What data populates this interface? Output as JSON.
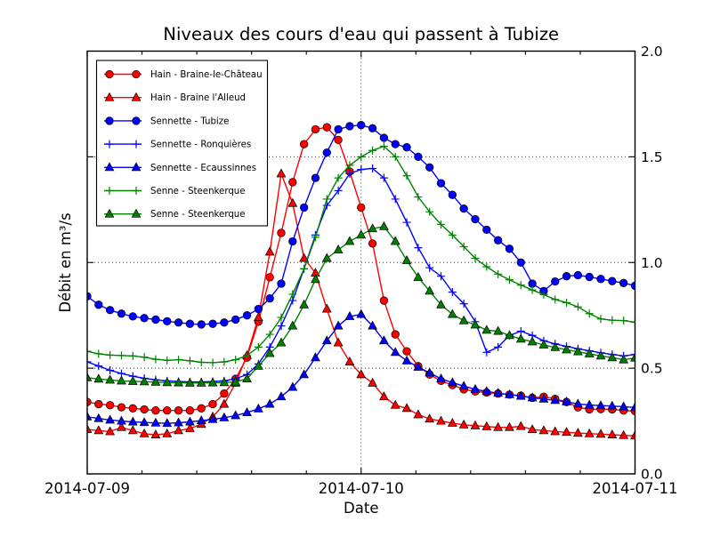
{
  "chart_data": {
    "type": "line",
    "title": "Niveaux des cours d'eau qui passent à Tubize",
    "xlabel": "Date",
    "ylabel": "Débit en m³/s",
    "x_tick_labels": [
      "2014-07-09",
      "2014-07-10",
      "2014-07-11"
    ],
    "y_tick_labels": [
      "0.0",
      "0.5",
      "1.0",
      "1.5",
      "2.0"
    ],
    "y_tick_values": [
      0.0,
      0.5,
      1.0,
      1.5,
      2.0
    ],
    "ylim": [
      0.0,
      2.0
    ],
    "x_range_hours": 48,
    "x_major_tick_hours": [
      0,
      24,
      48
    ],
    "x_minor_tick_hours": [
      4.8,
      9.6,
      14.4,
      19.2,
      28.8,
      33.6,
      38.4,
      43.2
    ],
    "grid": {
      "style": "dotted",
      "y_values": [
        0.5,
        1.0,
        1.5
      ],
      "x_hours": [
        24
      ]
    },
    "legend": {
      "position": "upper-left"
    },
    "axis_color": "#000000",
    "background_color": "#ffffff",
    "series": [
      {
        "name": "Hain - Braine-le-Château",
        "color": "#ff0000",
        "marker": "circle",
        "hours_step": 1,
        "values": [
          0.34,
          0.33,
          0.325,
          0.315,
          0.31,
          0.305,
          0.3,
          0.3,
          0.3,
          0.3,
          0.31,
          0.33,
          0.38,
          0.45,
          0.55,
          0.72,
          0.93,
          1.14,
          1.38,
          1.56,
          1.63,
          1.64,
          1.58,
          1.43,
          1.26,
          1.09,
          0.82,
          0.66,
          0.58,
          0.51,
          0.47,
          0.44,
          0.42,
          0.4,
          0.39,
          0.385,
          0.38,
          0.375,
          0.37,
          0.36,
          0.365,
          0.355,
          0.34,
          0.315,
          0.305,
          0.306,
          0.305,
          0.3,
          0.297
        ]
      },
      {
        "name": "Hain - Braine l'Alleud",
        "color": "#ff0000",
        "marker": "triangle",
        "hours_step": 1,
        "values": [
          0.21,
          0.205,
          0.2,
          0.22,
          0.205,
          0.19,
          0.185,
          0.19,
          0.205,
          0.215,
          0.235,
          0.27,
          0.33,
          0.43,
          0.56,
          0.74,
          1.05,
          1.42,
          1.28,
          1.02,
          0.95,
          0.78,
          0.62,
          0.53,
          0.47,
          0.43,
          0.365,
          0.325,
          0.31,
          0.28,
          0.26,
          0.25,
          0.24,
          0.232,
          0.228,
          0.224,
          0.22,
          0.22,
          0.225,
          0.21,
          0.205,
          0.2,
          0.197,
          0.193,
          0.19,
          0.188,
          0.185,
          0.182,
          0.18
        ]
      },
      {
        "name": "Sennette - Tubize",
        "color": "#0000ff",
        "marker": "circle",
        "hours_step": 1,
        "values": [
          0.84,
          0.8,
          0.775,
          0.758,
          0.745,
          0.737,
          0.73,
          0.722,
          0.716,
          0.71,
          0.707,
          0.71,
          0.716,
          0.73,
          0.75,
          0.78,
          0.83,
          0.9,
          1.1,
          1.26,
          1.4,
          1.52,
          1.63,
          1.645,
          1.65,
          1.635,
          1.59,
          1.56,
          1.545,
          1.5,
          1.45,
          1.375,
          1.32,
          1.255,
          1.205,
          1.155,
          1.105,
          1.065,
          1.0,
          0.9,
          0.865,
          0.91,
          0.935,
          0.94,
          0.932,
          0.922,
          0.912,
          0.903,
          0.89
        ]
      },
      {
        "name": "Sennette - Ronquières",
        "color": "#0000ff",
        "marker": "plus",
        "hours_step": 1,
        "values": [
          0.53,
          0.51,
          0.49,
          0.475,
          0.462,
          0.452,
          0.445,
          0.44,
          0.437,
          0.435,
          0.435,
          0.437,
          0.44,
          0.45,
          0.47,
          0.52,
          0.6,
          0.7,
          0.82,
          0.97,
          1.13,
          1.27,
          1.34,
          1.42,
          1.44,
          1.445,
          1.4,
          1.3,
          1.19,
          1.07,
          0.975,
          0.935,
          0.86,
          0.805,
          0.72,
          0.575,
          0.6,
          0.655,
          0.675,
          0.655,
          0.63,
          0.615,
          0.603,
          0.592,
          0.582,
          0.573,
          0.565,
          0.558,
          0.565
        ]
      },
      {
        "name": "Sennette - Ecaussinnes",
        "color": "#0000ff",
        "marker": "triangle",
        "hours_step": 1,
        "values": [
          0.27,
          0.262,
          0.255,
          0.25,
          0.246,
          0.243,
          0.241,
          0.239,
          0.242,
          0.246,
          0.252,
          0.258,
          0.266,
          0.276,
          0.29,
          0.308,
          0.33,
          0.365,
          0.41,
          0.47,
          0.55,
          0.63,
          0.7,
          0.745,
          0.755,
          0.7,
          0.63,
          0.575,
          0.535,
          0.505,
          0.478,
          0.45,
          0.432,
          0.415,
          0.4,
          0.39,
          0.382,
          0.375,
          0.368,
          0.36,
          0.354,
          0.348,
          0.341,
          0.331,
          0.326,
          0.323,
          0.321,
          0.318,
          0.314
        ]
      },
      {
        "name": "Senne - Steenkerque",
        "color": "#008000",
        "marker": "plus",
        "hours_step": 1,
        "values": [
          0.58,
          0.568,
          0.562,
          0.56,
          0.558,
          0.552,
          0.542,
          0.537,
          0.54,
          0.535,
          0.528,
          0.526,
          0.53,
          0.54,
          0.56,
          0.6,
          0.66,
          0.74,
          0.85,
          0.97,
          1.12,
          1.3,
          1.4,
          1.46,
          1.5,
          1.53,
          1.55,
          1.5,
          1.41,
          1.31,
          1.24,
          1.18,
          1.13,
          1.075,
          1.02,
          0.98,
          0.945,
          0.918,
          0.893,
          0.87,
          0.848,
          0.825,
          0.81,
          0.79,
          0.758,
          0.733,
          0.727,
          0.725,
          0.717
        ]
      },
      {
        "name": "Senne - Steenkerque",
        "color": "#008000",
        "marker": "triangle",
        "hours_step": 1,
        "values": [
          0.455,
          0.449,
          0.444,
          0.44,
          0.438,
          0.436,
          0.434,
          0.432,
          0.431,
          0.43,
          0.43,
          0.431,
          0.432,
          0.435,
          0.45,
          0.51,
          0.57,
          0.62,
          0.7,
          0.8,
          0.92,
          1.02,
          1.06,
          1.1,
          1.13,
          1.16,
          1.17,
          1.1,
          1.01,
          0.93,
          0.865,
          0.8,
          0.755,
          0.725,
          0.705,
          0.68,
          0.675,
          0.655,
          0.638,
          0.625,
          0.61,
          0.598,
          0.587,
          0.578,
          0.568,
          0.558,
          0.55,
          0.54,
          0.548
        ]
      }
    ]
  }
}
